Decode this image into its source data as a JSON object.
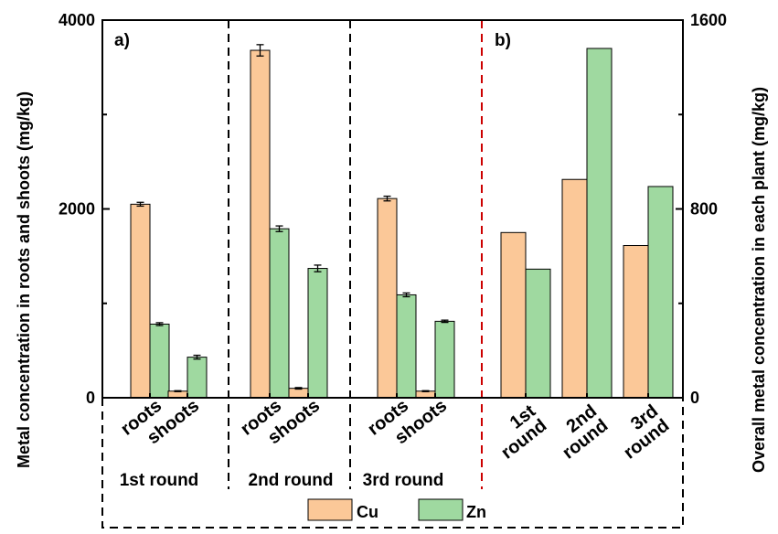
{
  "chart_data": [
    {
      "type": "bar",
      "panel_label": "a)",
      "ylabel": "Metal concentration in roots and shoots (mg/kg)",
      "ylim": [
        0,
        4000
      ],
      "yticks": [
        0,
        2000,
        4000
      ],
      "groups": [
        {
          "label": "1st round",
          "categories": [
            "roots",
            "shoots"
          ]
        },
        {
          "label": "2nd round",
          "categories": [
            "roots",
            "shoots"
          ]
        },
        {
          "label": "3rd round",
          "categories": [
            "roots",
            "shoots"
          ]
        }
      ],
      "categories": [
        "roots",
        "shoots",
        "roots",
        "shoots",
        "roots",
        "shoots"
      ],
      "series": [
        {
          "name": "Cu",
          "values": [
            2050,
            70,
            3680,
            100,
            2110,
            70
          ],
          "errors": [
            20,
            5,
            60,
            8,
            25,
            5
          ]
        },
        {
          "name": "Zn",
          "values": [
            780,
            430,
            1790,
            1370,
            1090,
            810
          ],
          "errors": [
            15,
            20,
            30,
            35,
            20,
            12
          ]
        }
      ]
    },
    {
      "type": "bar",
      "panel_label": "b)",
      "ylabel": "Overall metal concentration in each plant (mg/kg)",
      "ylim": [
        0,
        1600
      ],
      "yticks": [
        0,
        800,
        1600
      ],
      "categories": [
        "1st round",
        "2nd round",
        "3rd round"
      ],
      "category_lines": [
        [
          "1st",
          "round"
        ],
        [
          "2nd",
          "round"
        ],
        [
          "3rd",
          "round"
        ]
      ],
      "series": [
        {
          "name": "Cu",
          "values": [
            700,
            925,
            645
          ]
        },
        {
          "name": "Zn",
          "values": [
            545,
            1480,
            895
          ]
        }
      ]
    }
  ],
  "legend": {
    "position": "bottom",
    "entries": [
      {
        "name": "Cu",
        "color": "#FBC898"
      },
      {
        "name": "Zn",
        "color": "#9FD9A0"
      }
    ]
  },
  "colors": {
    "cu": "#FBC898",
    "zn": "#9FD9A0",
    "panel_divider": "#CC0000",
    "group_divider": "#000000"
  }
}
